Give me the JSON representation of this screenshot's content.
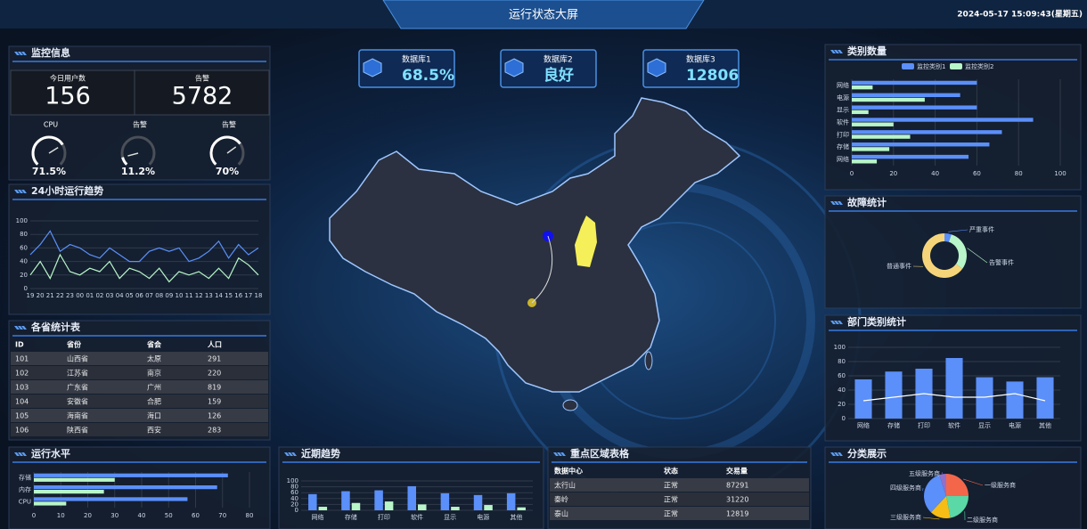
{
  "header": {
    "title": "运行状态大屏",
    "datetime": "2024-05-17 15:09:43(星期五)"
  },
  "monitor": {
    "title": "监控信息",
    "stats": [
      {
        "label": "今日用户数",
        "value": "156"
      },
      {
        "label": "告警",
        "value": "5782"
      }
    ],
    "gauges": {
      "type": "gauge",
      "labels": [
        "CPU",
        "告警",
        "告警"
      ],
      "values": [
        71.5,
        11.2,
        70
      ],
      "value_labels": [
        "71.5%",
        "11.2%",
        "70%"
      ],
      "ylim": [
        0,
        100
      ],
      "color": "#ffffff"
    }
  },
  "databases": [
    {
      "label": "数据库1",
      "value": "68.5%"
    },
    {
      "label": "数据库2",
      "value": "良好"
    },
    {
      "label": "数据库3",
      "value": "12806"
    }
  ],
  "trend_24h": {
    "title": "24小时运行趋势",
    "chart_data": {
      "type": "line",
      "categories": [
        "19",
        "20",
        "21",
        "22",
        "23",
        "00",
        "01",
        "02",
        "03",
        "04",
        "05",
        "06",
        "07",
        "08",
        "09",
        "10",
        "11",
        "12",
        "13",
        "14",
        "15",
        "16",
        "17",
        "18"
      ],
      "series": [
        {
          "color": "#5b8ff9",
          "values": [
            50,
            65,
            85,
            55,
            65,
            60,
            50,
            45,
            60,
            50,
            40,
            40,
            55,
            60,
            55,
            60,
            40,
            45,
            55,
            70,
            45,
            65,
            50,
            60
          ]
        },
        {
          "color": "#b8f5c8",
          "values": [
            20,
            40,
            15,
            50,
            25,
            20,
            30,
            25,
            40,
            15,
            30,
            25,
            15,
            30,
            10,
            25,
            20,
            25,
            15,
            30,
            15,
            45,
            35,
            20
          ]
        }
      ],
      "ylim": [
        0,
        100
      ],
      "yticks": [
        0,
        20,
        40,
        60,
        80,
        100
      ]
    }
  },
  "province_table": {
    "title": "各省统计表",
    "columns": [
      "ID",
      "省份",
      "省会",
      "人口"
    ],
    "rows": [
      [
        "101",
        "山西省",
        "太原",
        "291"
      ],
      [
        "102",
        "江苏省",
        "南京",
        "220"
      ],
      [
        "103",
        "广东省",
        "广州",
        "819"
      ],
      [
        "104",
        "安徽省",
        "合肥",
        "159"
      ],
      [
        "105",
        "海南省",
        "海口",
        "126"
      ],
      [
        "106",
        "陕西省",
        "西安",
        "283"
      ]
    ]
  },
  "running_level": {
    "title": "运行水平",
    "chart_data": {
      "type": "bar",
      "orientation": "horizontal",
      "categories": [
        "存储",
        "内存",
        "CPU"
      ],
      "series": [
        {
          "color": "#5b8ff9",
          "values": [
            72,
            68,
            57
          ]
        },
        {
          "color": "#b8f5c8",
          "values": [
            30,
            26,
            12
          ]
        }
      ],
      "xlim": [
        0,
        80
      ],
      "xticks": [
        0,
        10,
        20,
        30,
        40,
        50,
        60,
        70,
        80
      ]
    }
  },
  "recent_trend": {
    "title": "近期趋势",
    "chart_data": {
      "type": "bar",
      "categories": [
        "网络",
        "存储",
        "打印",
        "软件",
        "显示",
        "电源",
        "其他"
      ],
      "series": [
        {
          "color": "#5b8ff9",
          "values": [
            55,
            65,
            68,
            82,
            58,
            52,
            58
          ]
        },
        {
          "color": "#b8f5c8",
          "values": [
            12,
            25,
            30,
            20,
            12,
            18,
            10
          ]
        }
      ],
      "ylim": [
        0,
        100
      ],
      "yticks": [
        0,
        20,
        40,
        60,
        80,
        100
      ]
    }
  },
  "region_table": {
    "title": "重点区域表格",
    "columns": [
      "数据中心",
      "状态",
      "交易量"
    ],
    "rows": [
      [
        "太行山",
        "正常",
        "87291"
      ],
      [
        "秦岭",
        "正常",
        "31220"
      ],
      [
        "泰山",
        "正常",
        "12819"
      ]
    ]
  },
  "category_count": {
    "title": "类别数量",
    "chart_data": {
      "type": "bar",
      "orientation": "horizontal",
      "categories": [
        "网络",
        "电源",
        "显示",
        "软件",
        "打印",
        "存储",
        "网络"
      ],
      "series": [
        {
          "name": "监控类别1",
          "color": "#5b8ff9",
          "values": [
            60,
            52,
            60,
            87,
            72,
            66,
            56
          ]
        },
        {
          "name": "监控类别2",
          "color": "#b8f5c8",
          "values": [
            10,
            35,
            8,
            20,
            28,
            18,
            12
          ]
        }
      ],
      "xlim": [
        0,
        100
      ],
      "xticks": [
        0,
        20,
        40,
        60,
        80,
        100
      ]
    }
  },
  "fault_stats": {
    "title": "故障统计",
    "chart_data": {
      "type": "donut",
      "categories": [
        "严重事件",
        "告警事件",
        "普通事件"
      ],
      "values": [
        5,
        30,
        65
      ],
      "colors": [
        "#5b8ff9",
        "#b8f5c8",
        "#f6d57a"
      ]
    }
  },
  "dept_stats": {
    "title": "部门类别统计",
    "chart_data": {
      "type": "bar",
      "categories": [
        "网络",
        "存储",
        "打印",
        "软件",
        "显示",
        "电源",
        "其他"
      ],
      "series": [
        {
          "color": "#5b8ff9",
          "values": [
            55,
            66,
            70,
            85,
            58,
            52,
            58
          ]
        },
        {
          "type": "line",
          "color": "#ffffff",
          "values": [
            25,
            30,
            35,
            30,
            30,
            35,
            25
          ]
        }
      ],
      "ylim": [
        0,
        100
      ],
      "yticks": [
        0,
        20,
        40,
        60,
        80,
        100
      ]
    }
  },
  "category_display": {
    "title": "分类展示",
    "chart_data": {
      "type": "pie",
      "categories": [
        "一级服务商",
        "二级服务商",
        "三级服务商",
        "四级服务商",
        "五级服务商"
      ],
      "values": [
        25,
        22,
        15,
        33,
        5
      ],
      "colors": [
        "#f4664a",
        "#5ad8a6",
        "#f6bd16",
        "#5b8ff9",
        "#9270ca"
      ]
    }
  }
}
